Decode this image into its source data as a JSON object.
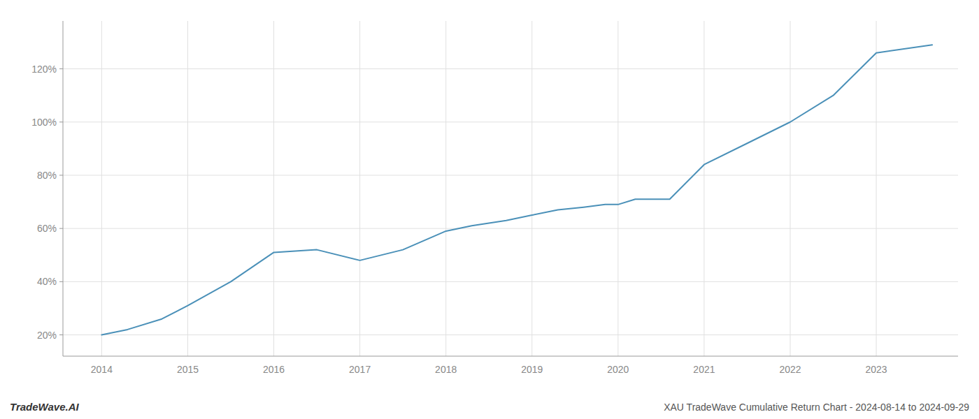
{
  "chart_data": {
    "type": "line",
    "title": "XAU TradeWave Cumulative Return Chart - 2024-08-14 to 2024-09-29",
    "annotations": [
      "TradeWave.AI"
    ],
    "color": "#4a90b8",
    "grid": true,
    "x": [
      2014.0,
      2014.3,
      2014.7,
      2015.0,
      2015.5,
      2016.0,
      2016.5,
      2017.0,
      2017.5,
      2018.0,
      2018.3,
      2018.7,
      2019.0,
      2019.3,
      2019.6,
      2019.85,
      2020.0,
      2020.2,
      2020.6,
      2021.0,
      2021.5,
      2022.0,
      2022.5,
      2023.0,
      2023.65
    ],
    "values": [
      20,
      22,
      26,
      31,
      40,
      51,
      52,
      48,
      52,
      59,
      61,
      63,
      65,
      67,
      68,
      69,
      69,
      71,
      71,
      84,
      92,
      100,
      110,
      126,
      129
    ],
    "xlim": [
      2013.55,
      2023.95
    ],
    "xticks": [
      2014,
      2015,
      2016,
      2017,
      2018,
      2019,
      2020,
      2021,
      2022,
      2023
    ],
    "ylim": [
      12,
      138
    ],
    "yticks": [
      {
        "value": 20,
        "label": "20%"
      },
      {
        "value": 40,
        "label": "40%"
      },
      {
        "value": 60,
        "label": "60%"
      },
      {
        "value": 80,
        "label": "80%"
      },
      {
        "value": 100,
        "label": "100%"
      },
      {
        "value": 120,
        "label": "120%"
      }
    ]
  }
}
